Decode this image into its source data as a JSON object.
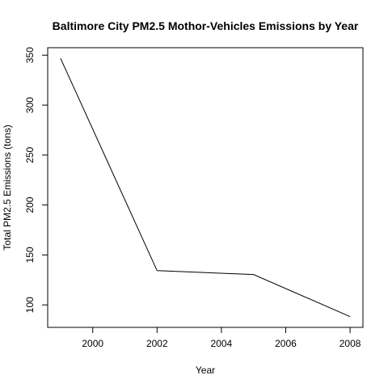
{
  "chart_data": {
    "type": "line",
    "title": "Baltimore City PM2.5 Mothor-Vehicles Emissions  by Year",
    "xlabel": "Year",
    "ylabel": "Total PM2.5 Emissions (tons)",
    "x": [
      1999,
      2002,
      2005,
      2008
    ],
    "series": [
      {
        "values": [
          346.8,
          134.3,
          130.4,
          88.3
        ]
      }
    ],
    "xlim": [
      1998.6,
      2008.4
    ],
    "ylim": [
      77.5,
      357.5
    ],
    "xticks": [
      2000,
      2002,
      2004,
      2006,
      2008
    ],
    "yticks": [
      100,
      150,
      200,
      250,
      300,
      350
    ],
    "grid": false,
    "line_color": "#000000",
    "background": "#ffffff"
  }
}
